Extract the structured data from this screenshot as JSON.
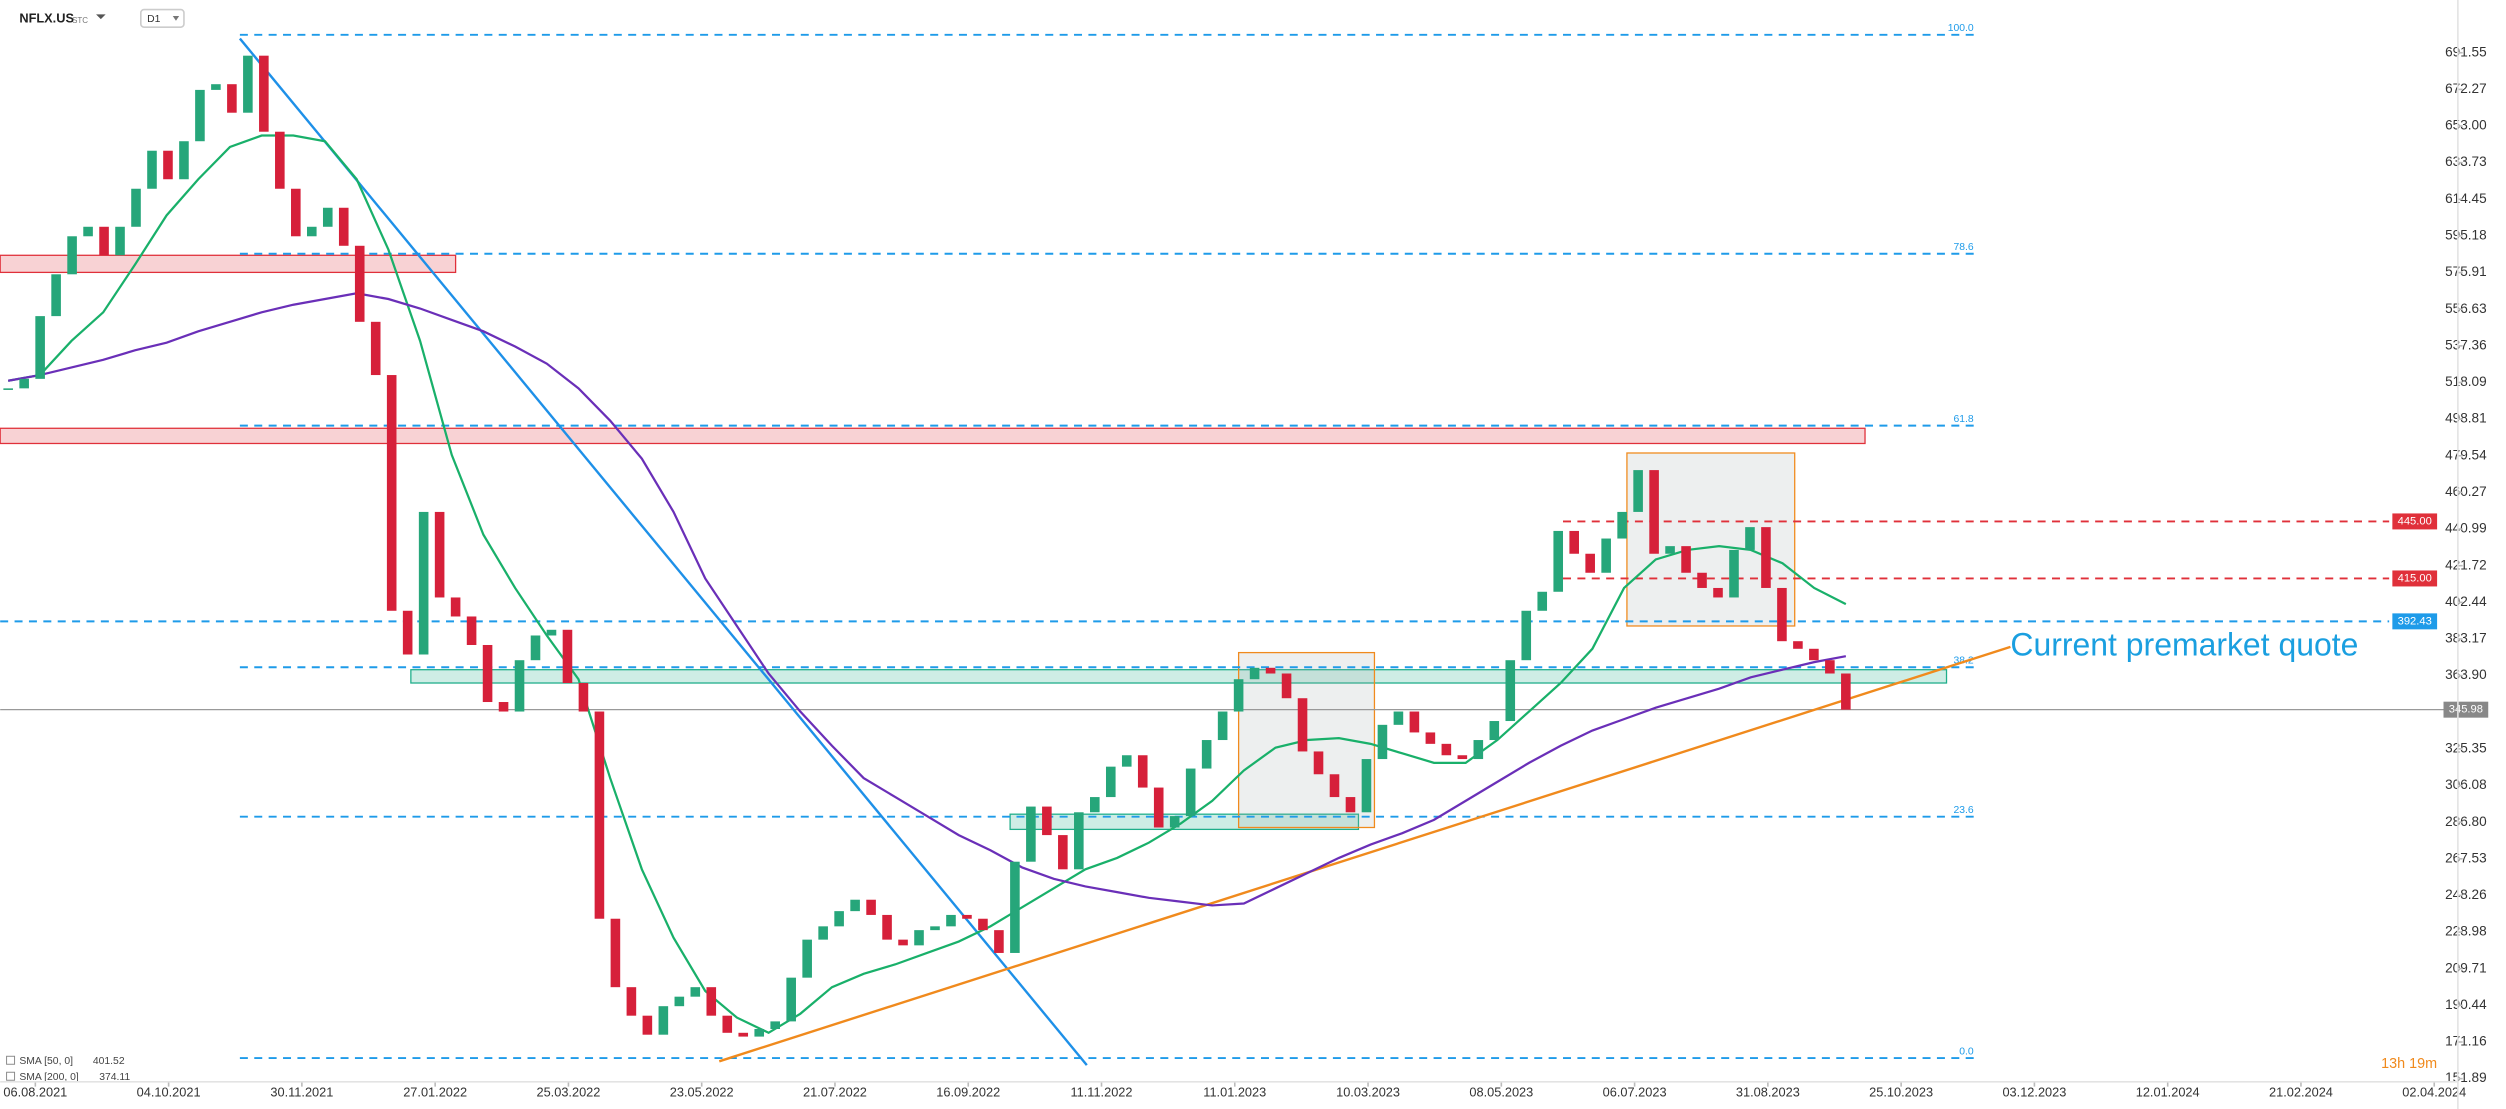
{
  "header": {
    "symbol": "NFLX.US",
    "suffix": "STC",
    "timeframe": "D1"
  },
  "chart_data": {
    "type": "candlestick",
    "up_color": "#26a67a",
    "down_color": "#d6203a",
    "close": [
      515,
      520,
      553,
      575,
      595,
      600,
      585,
      600,
      620,
      640,
      625,
      645,
      672,
      675,
      660,
      690,
      650,
      620,
      595,
      600,
      610,
      590,
      550,
      522,
      398,
      375,
      450,
      405,
      395,
      380,
      350,
      345,
      372,
      385,
      388,
      360,
      345,
      236,
      200,
      185,
      175,
      190,
      195,
      200,
      185,
      176,
      174,
      178,
      182,
      205,
      225,
      232,
      240,
      246,
      238,
      225,
      222,
      230,
      232,
      238,
      236,
      230,
      218,
      266,
      295,
      280,
      262,
      292,
      300,
      316,
      322,
      305,
      284,
      290,
      315,
      330,
      345,
      362,
      368,
      365,
      352,
      324,
      312,
      300,
      292,
      320,
      338,
      345,
      334,
      328,
      322,
      320,
      330,
      340,
      372,
      398,
      408,
      440,
      428,
      418,
      436,
      450,
      472,
      428,
      432,
      418,
      410,
      405,
      430,
      442,
      410,
      382,
      378,
      372,
      365,
      345.98
    ],
    "series": [
      {
        "name": "SMA [50, 0]",
        "color": "#19b06a",
        "values": [
          519,
          522,
          540,
          555,
          580,
          606,
          625,
          642,
          648,
          648,
          645,
          625,
          588,
          540,
          480,
          438,
          410,
          385,
          362,
          310,
          262,
          226,
          198,
          184,
          176,
          186,
          200,
          207,
          212,
          218,
          224,
          232,
          242,
          252,
          262,
          268,
          276,
          286,
          298,
          314,
          326,
          330,
          331,
          328,
          323,
          318,
          318,
          330,
          345,
          360,
          378,
          410,
          425,
          430,
          432,
          430,
          423,
          410,
          401.52
        ]
      },
      {
        "name": "SMA [200, 0]",
        "color": "#6a2fb8",
        "values": [
          519,
          522,
          526,
          530,
          535,
          539,
          545,
          550,
          555,
          559,
          562,
          565,
          562,
          557,
          551,
          545,
          537,
          528,
          515,
          498,
          478,
          450,
          415,
          390,
          365,
          345,
          327,
          310,
          300,
          290,
          280,
          272,
          263,
          257,
          253,
          250,
          247,
          245,
          243,
          244,
          252,
          260,
          268,
          275,
          281,
          288,
          298,
          308,
          318,
          327,
          335,
          341,
          347,
          352,
          357,
          363,
          367,
          371,
          374.11
        ]
      }
    ],
    "xticks": [
      "06.08.2021",
      "04.10.2021",
      "30.11.2021",
      "27.01.2022",
      "25.03.2022",
      "23.05.2022",
      "21.07.2022",
      "16.09.2022",
      "11.11.2022",
      "11.01.2023",
      "10.03.2023",
      "08.05.2023",
      "06.07.2023",
      "31.08.2023",
      "25.10.2023",
      "03.12.2023",
      "12.01.2024",
      "21.02.2024",
      "02.04.2024"
    ],
    "ylim": [
      144.32,
      719.29
    ],
    "yticks": [
      691.55,
      672.27,
      {
        "value": 653,
        "label": "653.00"
      },
      633.73,
      614.45,
      595.18,
      575.91,
      556.63,
      537.36,
      518.09,
      498.81,
      479.54,
      460.27,
      440.99,
      421.72,
      402.44,
      383.17,
      {
        "value": 363.9,
        "label": "363.90"
      },
      325.35,
      306.08,
      {
        "value": 286.8,
        "label": "286.80"
      },
      267.53,
      248.26,
      228.98,
      209.71,
      190.44,
      171.16,
      151.89
    ],
    "fibonacci": [
      {
        "name": "100.0",
        "price": 700.99
      },
      {
        "name": "78.6",
        "price": 585.8
      },
      {
        "name": "61.8",
        "price": 495.4
      },
      {
        "name": "38.2",
        "price": 368.3
      },
      {
        "name": "23.6",
        "price": 289.7
      },
      {
        "name": "0.0",
        "price": 162.71
      }
    ],
    "levels": [
      {
        "value": 392.43,
        "color": "#1e9be9"
      },
      {
        "value": 445,
        "label": "445.00",
        "color": "#e0303a"
      },
      {
        "value": 415,
        "label": "415.00",
        "color": "#e0303a"
      }
    ],
    "zones": [
      {
        "top": 585,
        "bottom": 576,
        "color": "#e0303a"
      },
      {
        "top": 494,
        "bottom": 486,
        "color": "#e0303a"
      },
      {
        "top": 367,
        "bottom": 360,
        "color": "#1fae8a"
      },
      {
        "top": 291,
        "bottom": 283,
        "color": "#1fae8a"
      },
      {
        "top": 376,
        "bottom": 284,
        "color": "#f08a1d"
      },
      {
        "top": 481,
        "bottom": 390,
        "color": "#f08a1d"
      }
    ],
    "trendlines": [
      {
        "from": 699,
        "to": 159,
        "color": "#1e90e8"
      },
      {
        "from": 161,
        "to": 379,
        "color": "#f08a1d"
      }
    ],
    "annotation": "Current premarket quote",
    "countdown": "13h 19m"
  }
}
